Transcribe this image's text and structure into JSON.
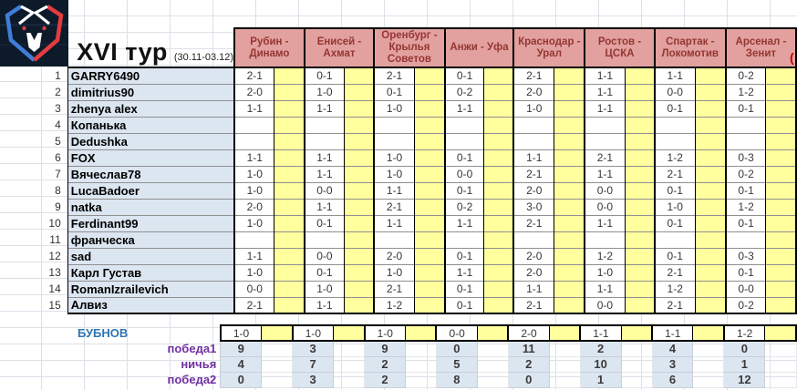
{
  "header": {
    "title": "XVI тур",
    "dates": "(30.11-03.12)"
  },
  "matches": [
    "Рубин - Динамо",
    "Енисей - Ахмат",
    "Оренбург - Крылья Советов",
    "Анжи - Уфа",
    "Краснодар - Урал",
    "Ростов - ЦСКА",
    "Спартак - Локомотив",
    "Арсенал - Зенит"
  ],
  "players": [
    {
      "num": 1,
      "name": "GARRY6490",
      "predictions": [
        "2-1",
        "0-1",
        "2-1",
        "0-1",
        "2-1",
        "1-1",
        "1-1",
        "0-2"
      ]
    },
    {
      "num": 2,
      "name": "dimitrius90",
      "predictions": [
        "2-0",
        "1-0",
        "0-1",
        "0-2",
        "2-0",
        "1-1",
        "0-0",
        "1-2"
      ]
    },
    {
      "num": 3,
      "name": "zhenya alex",
      "predictions": [
        "1-1",
        "1-1",
        "1-0",
        "1-1",
        "1-0",
        "1-1",
        "0-1",
        "0-1"
      ]
    },
    {
      "num": 4,
      "name": "Копанька",
      "predictions": [
        "",
        "",
        "",
        "",
        "",
        "",
        "",
        ""
      ]
    },
    {
      "num": 5,
      "name": "Dedushka",
      "predictions": [
        "",
        "",
        "",
        "",
        "",
        "",
        "",
        ""
      ]
    },
    {
      "num": 6,
      "name": "FOX",
      "predictions": [
        "1-1",
        "1-1",
        "1-0",
        "0-1",
        "1-1",
        "2-1",
        "1-2",
        "0-3"
      ]
    },
    {
      "num": 7,
      "name": "Вячеслав78",
      "predictions": [
        "1-0",
        "1-1",
        "1-0",
        "0-0",
        "2-1",
        "1-1",
        "2-1",
        "0-2"
      ]
    },
    {
      "num": 8,
      "name": "LucaBadoer",
      "predictions": [
        "1-0",
        "0-0",
        "1-1",
        "0-1",
        "2-0",
        "0-0",
        "0-1",
        "0-1"
      ]
    },
    {
      "num": 9,
      "name": "natka",
      "predictions": [
        "2-0",
        "1-1",
        "2-1",
        "0-2",
        "3-0",
        "0-0",
        "1-0",
        "1-2"
      ]
    },
    {
      "num": 10,
      "name": "Ferdinant99",
      "predictions": [
        "1-0",
        "0-1",
        "1-1",
        "1-1",
        "2-1",
        "1-1",
        "0-1",
        "0-1"
      ]
    },
    {
      "num": 11,
      "name": "франческа",
      "predictions": [
        "",
        "",
        "",
        "",
        "",
        "",
        "",
        ""
      ]
    },
    {
      "num": 12,
      "name": "sad",
      "predictions": [
        "1-1",
        "0-0",
        "2-0",
        "0-1",
        "2-0",
        "1-2",
        "0-1",
        "0-3"
      ]
    },
    {
      "num": 13,
      "name": "Карл Густав",
      "predictions": [
        "1-0",
        "0-1",
        "1-0",
        "1-1",
        "2-0",
        "1-0",
        "2-1",
        "0-1"
      ]
    },
    {
      "num": 14,
      "name": "RomanIzrailevich",
      "predictions": [
        "0-0",
        "1-0",
        "2-1",
        "0-1",
        "1-1",
        "1-1",
        "1-2",
        "0-0"
      ]
    },
    {
      "num": 15,
      "name": "Алвиз",
      "predictions": [
        "2-1",
        "1-1",
        "1-2",
        "0-1",
        "2-1",
        "0-0",
        "2-1",
        "0-2"
      ]
    }
  ],
  "expert": {
    "name": "БУБНОВ",
    "predictions": [
      "1-0",
      "1-0",
      "1-0",
      "0-0",
      "2-0",
      "1-1",
      "1-1",
      "1-2"
    ]
  },
  "stats": [
    {
      "label": "победа1",
      "values": [
        "9",
        "3",
        "9",
        "0",
        "11",
        "2",
        "4",
        "0"
      ]
    },
    {
      "label": "ничья",
      "values": [
        "4",
        "7",
        "2",
        "5",
        "2",
        "10",
        "3",
        "1"
      ]
    },
    {
      "label": "победа2",
      "values": [
        "0",
        "3",
        "2",
        "8",
        "0",
        "1",
        "6",
        "12"
      ]
    }
  ],
  "edge_note": "(",
  "colors": {
    "match_header_fill": "#E2A19E",
    "match_header_text": "#943634",
    "name_cell_fill": "#DCE6F1",
    "prediction_slot_fill": "#FFFF9E",
    "expert_name_text": "#2E75B6",
    "stat_label_text": "#7030A0",
    "logo_background": "#0D1A2A",
    "logo_blue": "#3F7ED8",
    "logo_red": "#E13C40"
  }
}
